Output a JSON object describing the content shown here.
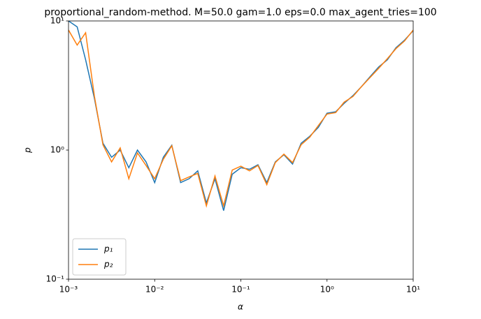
{
  "chart_data": {
    "type": "line",
    "title": "proportional_random-method. M=50.0 gam=1.0 eps=0.0 max_agent_tries=100",
    "x_label": "α",
    "y_label": "p",
    "xscale": "log",
    "yscale": "log",
    "x": [
      0.001,
      0.00126,
      0.00158,
      0.002,
      0.00251,
      0.00316,
      0.00398,
      0.00501,
      0.00631,
      0.00794,
      0.01,
      0.0126,
      0.0158,
      0.02,
      0.0251,
      0.0316,
      0.0398,
      0.0501,
      0.0631,
      0.0794,
      0.1,
      0.126,
      0.158,
      0.2,
      0.251,
      0.316,
      0.398,
      0.501,
      0.631,
      0.794,
      1,
      1.26,
      1.58,
      2,
      2.51,
      3.16,
      3.98,
      5.01,
      6.31,
      7.94,
      10
    ],
    "series": [
      {
        "name": "p₁",
        "color": "#1f77b4",
        "values": [
          10,
          9,
          5.0,
          2.5,
          1.13,
          0.88,
          1.0,
          0.73,
          1.0,
          0.81,
          0.56,
          0.88,
          1.09,
          0.56,
          0.6,
          0.69,
          0.39,
          0.6,
          0.34,
          0.65,
          0.73,
          0.71,
          0.77,
          0.56,
          0.81,
          0.92,
          0.78,
          1.13,
          1.28,
          1.5,
          1.93,
          1.98,
          2.3,
          2.64,
          3.1,
          3.7,
          4.4,
          5.0,
          6.2,
          7.1,
          8.4
        ]
      },
      {
        "name": "p₂",
        "color": "#ff7f0e",
        "values": [
          8.5,
          6.5,
          8.1,
          2.6,
          1.1,
          0.81,
          1.04,
          0.6,
          0.95,
          0.76,
          0.6,
          0.85,
          1.08,
          0.58,
          0.62,
          0.66,
          0.37,
          0.63,
          0.37,
          0.7,
          0.75,
          0.69,
          0.76,
          0.54,
          0.8,
          0.93,
          0.8,
          1.1,
          1.26,
          1.55,
          1.9,
          1.95,
          2.35,
          2.6,
          3.1,
          3.65,
          4.3,
          5.1,
          6.1,
          7.0,
          8.5
        ]
      }
    ],
    "xlim": [
      0.001,
      10
    ],
    "xticks": [
      {
        "value": 0.001,
        "label": "10⁻³"
      },
      {
        "value": 0.01,
        "label": "10⁻²"
      },
      {
        "value": 0.1,
        "label": "10⁻¹"
      },
      {
        "value": 1,
        "label": "10⁰"
      },
      {
        "value": 10,
        "label": "10¹"
      }
    ],
    "ylim": [
      0.1,
      10
    ],
    "yticks": [
      {
        "value": 0.1,
        "label": "10⁻¹"
      },
      {
        "value": 1,
        "label": "10⁰"
      },
      {
        "value": 10,
        "label": "10¹"
      }
    ],
    "legend": "lower left"
  }
}
